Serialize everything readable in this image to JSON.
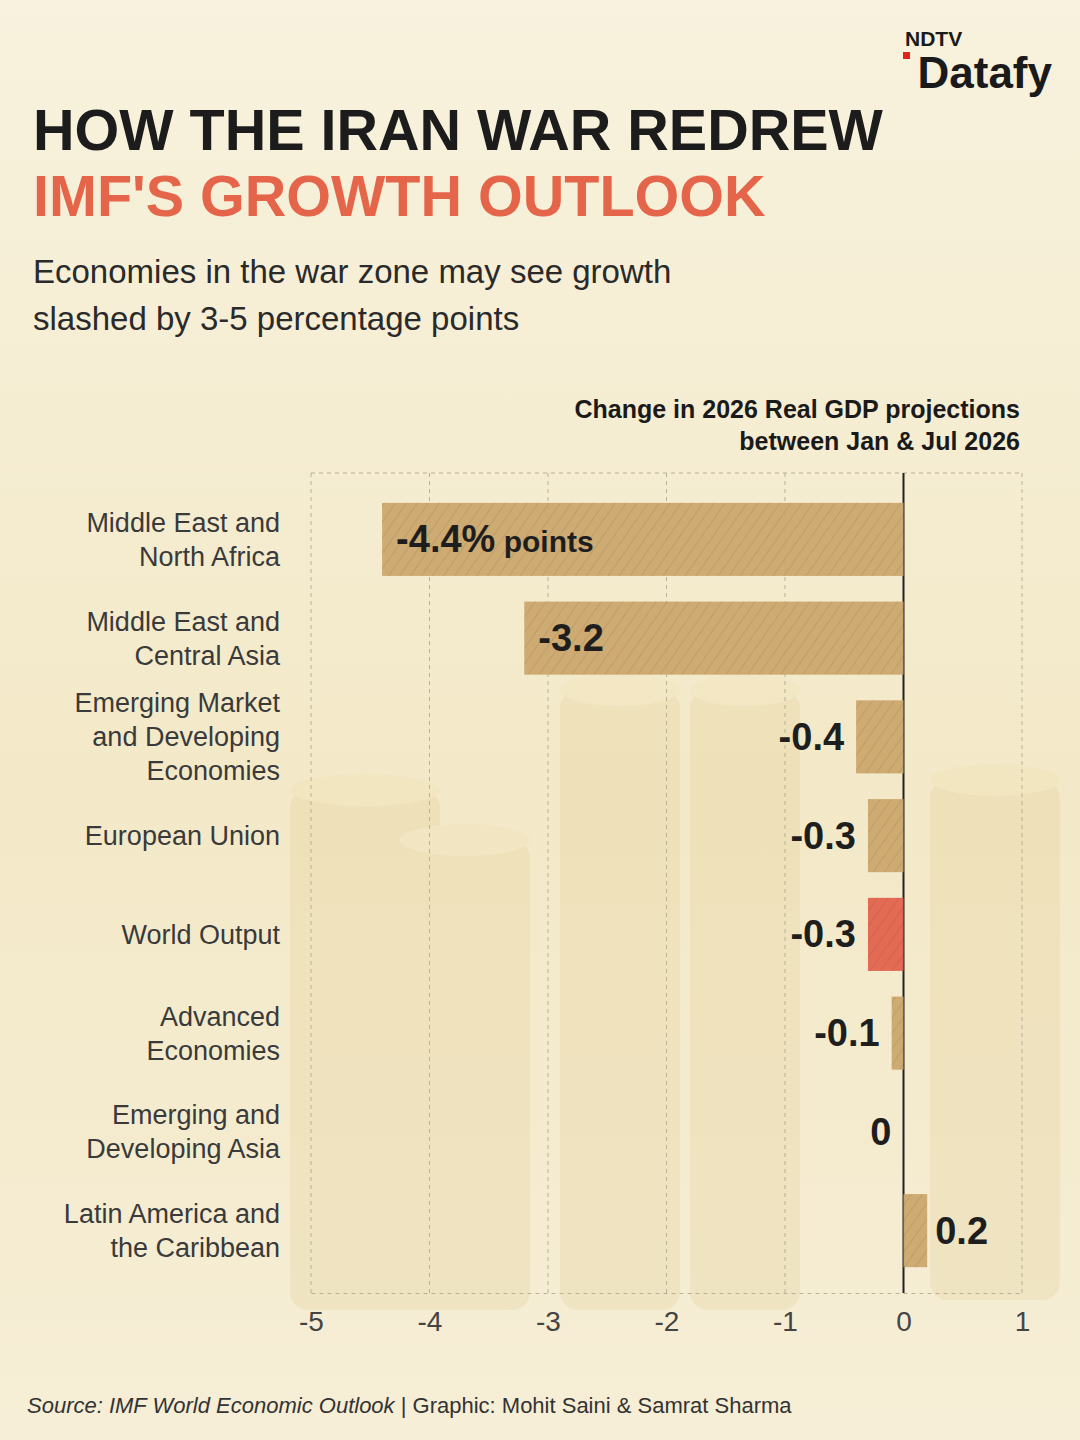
{
  "chart_data": {
    "type": "bar",
    "orientation": "horizontal",
    "brand": [
      "NDTV",
      "Datafy"
    ],
    "title": [
      "HOW THE IRAN WAR REDREW",
      "IMF'S GROWTH OUTLOOK"
    ],
    "subtitle": "Economies in the war zone may see growth slashed by 3-5 percentage points",
    "x_label": "Change in 2026 Real GDP projections between Jan & Jul 2026",
    "categories": [
      "Middle East and North Africa",
      "Middle East and Central Asia",
      "Emerging Market and Developing Economies",
      "European Union",
      "World Output",
      "Advanced Economies",
      "Emerging and Developing Asia",
      "Latin America and the Caribbean"
    ],
    "values": [
      -4.4,
      -3.2,
      -0.4,
      -0.3,
      -0.3,
      -0.1,
      0,
      0.2
    ],
    "value_labels": [
      "-4.4% points",
      "-3.2",
      "-0.4",
      "-0.3",
      "-0.3",
      "-0.1",
      "0",
      "0.2"
    ],
    "colors": [
      "#cba66a",
      "#cba66a",
      "#cba66a",
      "#cba66a",
      "#e2604a",
      "#cba66a",
      "#cba66a",
      "#cba66a"
    ],
    "xlim": [
      -5,
      1
    ],
    "xticks": [
      -5,
      -4,
      -3,
      -2,
      -1,
      0,
      1
    ],
    "grid": true,
    "data_labels": true,
    "source": "Source: IMF World Economic Outlook | Graphic: Mohit Saini & Samrat Sharma"
  }
}
